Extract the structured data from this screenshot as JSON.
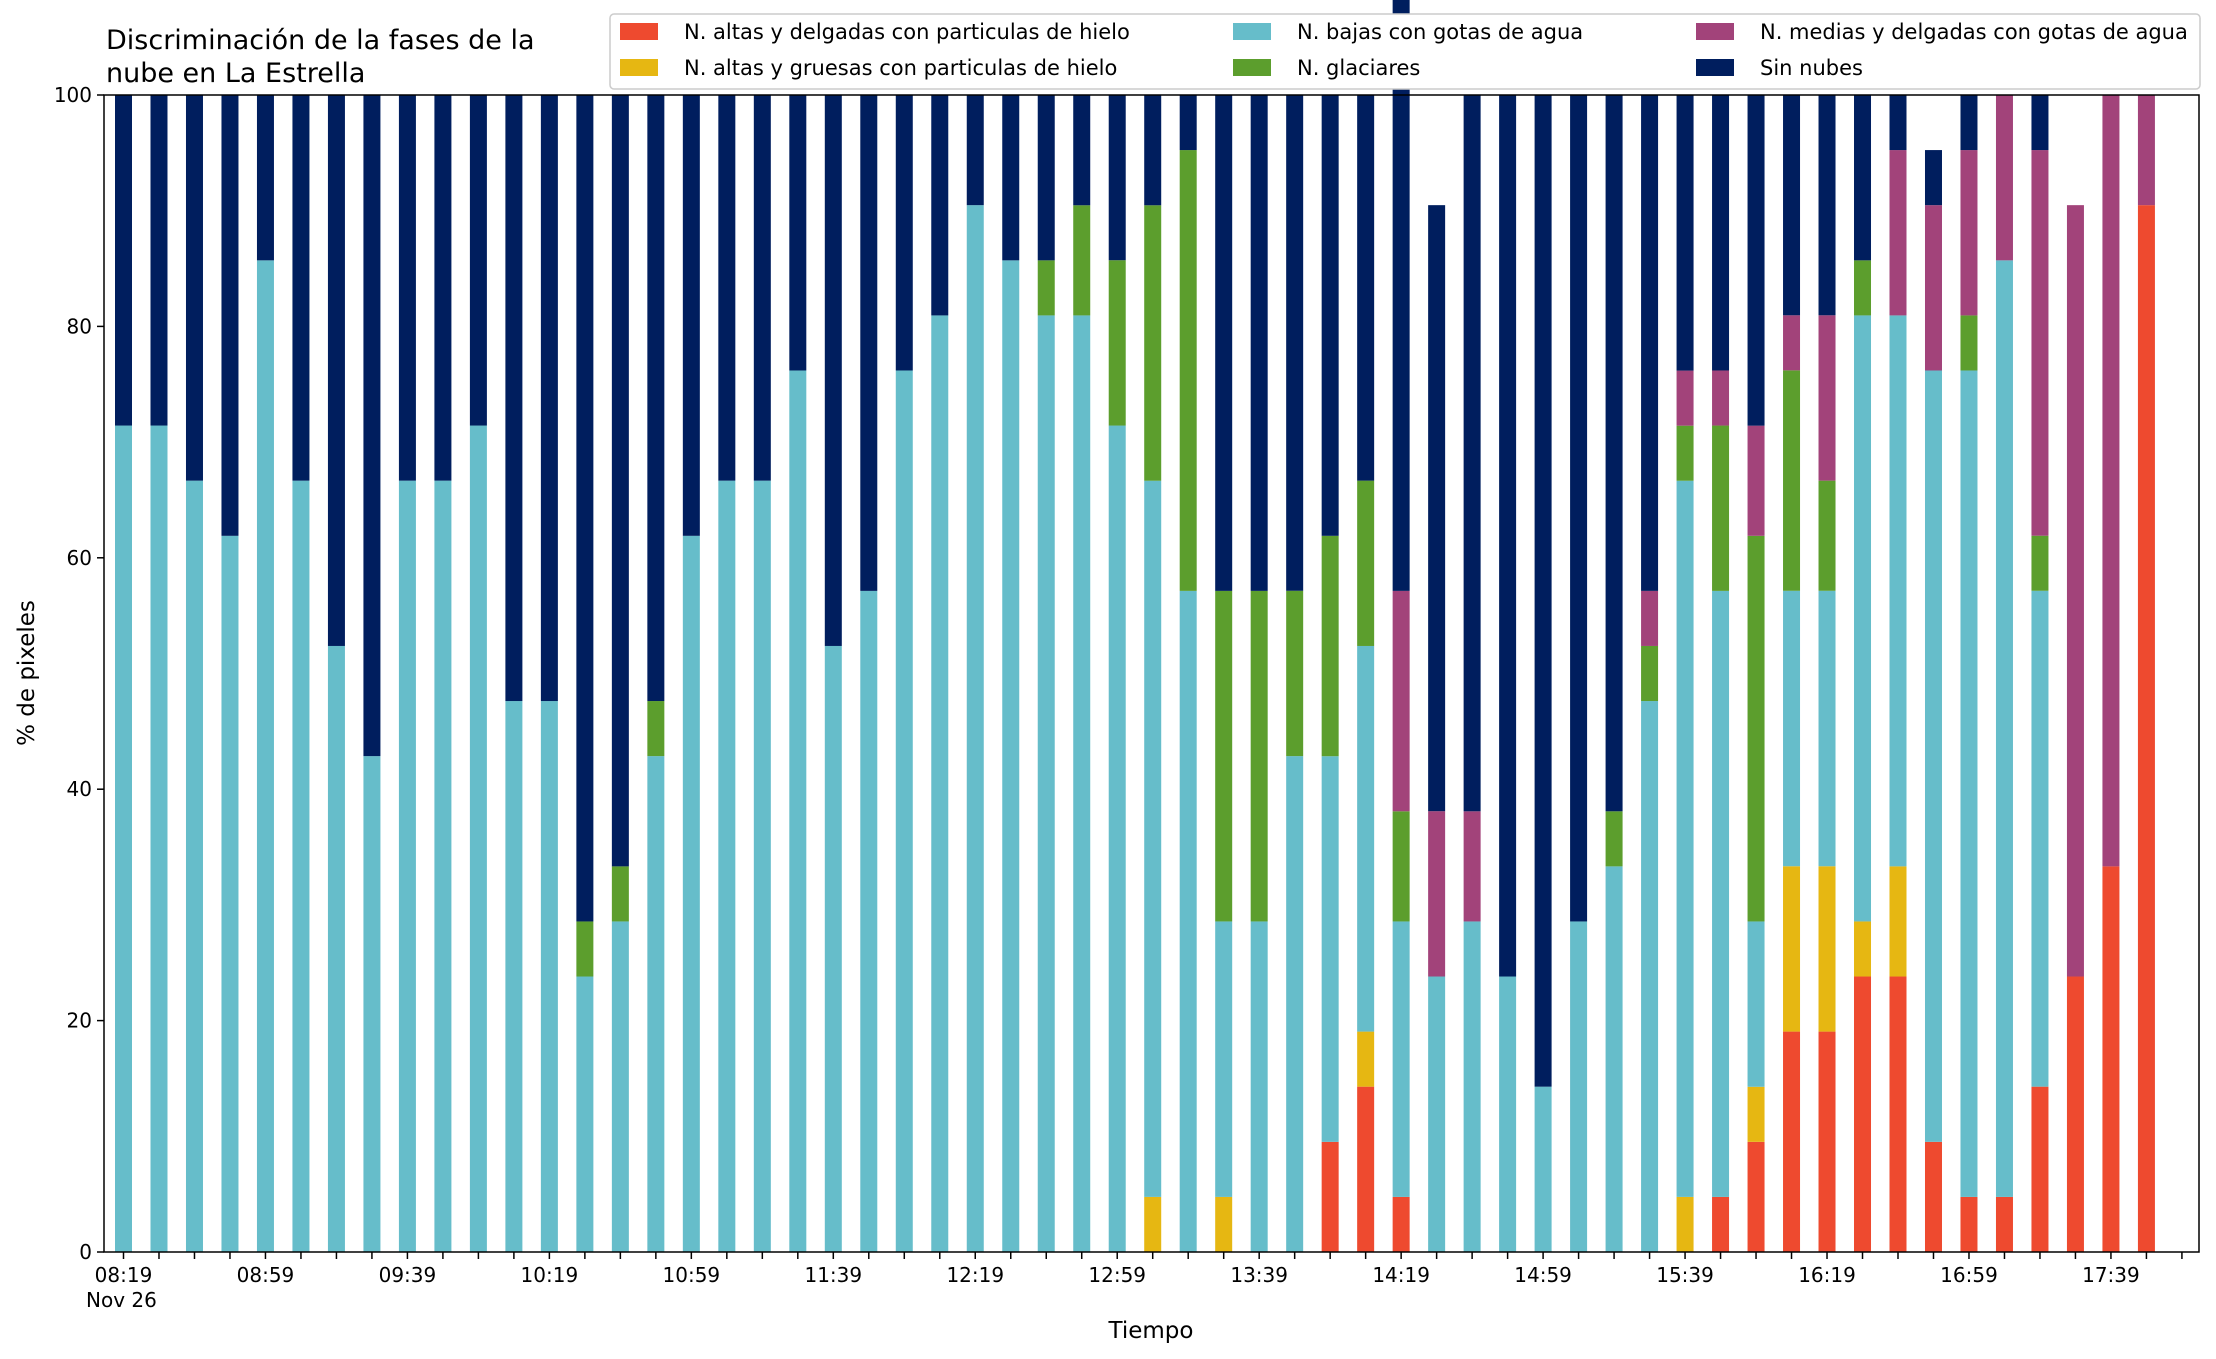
{
  "chart_data": {
    "type": "bar",
    "stacked": true,
    "title_lines": [
      "Discriminación de la fases de la",
      "nube en La Estrella"
    ],
    "xlabel": "Tiempo",
    "ylabel": "% de pixeles",
    "ylim": [
      0,
      100
    ],
    "yticks": [
      0,
      20,
      40,
      60,
      80,
      100
    ],
    "grid": false,
    "legend_position": "top-right",
    "x_date_label": "Nov 26",
    "x_tick_labels": [
      "08:19",
      "08:59",
      "09:39",
      "10:19",
      "10:59",
      "11:39",
      "12:19",
      "12:59",
      "13:39",
      "14:19",
      "14:59",
      "15:39",
      "16:19",
      "16:59",
      "17:39"
    ],
    "categories": [
      "08:19",
      "08:29",
      "08:39",
      "08:49",
      "08:59",
      "09:09",
      "09:19",
      "09:29",
      "09:39",
      "09:49",
      "09:59",
      "10:09",
      "10:19",
      "10:29",
      "10:39",
      "10:49",
      "10:59",
      "11:09",
      "11:19",
      "11:29",
      "11:39",
      "11:49",
      "11:59",
      "12:09",
      "12:19",
      "12:29",
      "12:39",
      "12:49",
      "12:59",
      "13:09",
      "13:19",
      "13:29",
      "13:39",
      "13:49",
      "13:59",
      "14:09",
      "14:19",
      "14:29",
      "14:39",
      "14:49",
      "14:59",
      "15:09",
      "15:19",
      "15:29",
      "15:39",
      "15:49",
      "15:59",
      "16:09",
      "16:19",
      "16:29",
      "16:39",
      "16:49",
      "16:59",
      "17:09",
      "17:19",
      "17:29",
      "17:39",
      "17:49"
    ],
    "legend_order": [
      0,
      1,
      2,
      3,
      4,
      5
    ],
    "series": [
      {
        "name": "N. altas y delgadas con particulas de hielo",
        "color": "#ee4a2f",
        "values": [
          0,
          0,
          0,
          0,
          0,
          0,
          0,
          0,
          0,
          0,
          0,
          0,
          0,
          0,
          0,
          0,
          0,
          0,
          0,
          0,
          0,
          0,
          0,
          0,
          0,
          0,
          0,
          0,
          0,
          0,
          0,
          0,
          0,
          0,
          9.52,
          14.29,
          4.76,
          0,
          0,
          0,
          0,
          0,
          0,
          0,
          0,
          4.76,
          9.52,
          19.05,
          19.05,
          23.81,
          23.81,
          9.52,
          4.76,
          4.76,
          14.29,
          23.81,
          33.33,
          90.48
        ]
      },
      {
        "name": "N. altas y gruesas con particulas de hielo",
        "color": "#e6b712",
        "values": [
          0,
          0,
          0,
          0,
          0,
          0,
          0,
          0,
          0,
          0,
          0,
          0,
          0,
          0,
          0,
          0,
          0,
          0,
          0,
          0,
          0,
          0,
          0,
          0,
          0,
          0,
          0,
          0,
          0,
          4.76,
          0,
          4.76,
          0,
          0,
          0,
          4.76,
          0,
          0,
          0,
          0,
          0,
          0,
          0,
          0,
          4.76,
          0,
          4.76,
          14.29,
          14.29,
          4.76,
          9.52,
          0,
          0,
          0,
          0,
          0,
          0,
          0
        ]
      },
      {
        "name": "N. bajas con gotas de agua",
        "color": "#66bdca",
        "values": [
          71.43,
          71.43,
          66.67,
          61.9,
          85.71,
          66.67,
          52.38,
          42.86,
          66.67,
          66.67,
          71.43,
          47.62,
          47.62,
          23.81,
          28.57,
          42.86,
          61.9,
          66.67,
          66.67,
          76.19,
          52.38,
          57.14,
          76.19,
          80.95,
          90.48,
          85.71,
          80.95,
          80.95,
          71.43,
          61.9,
          57.14,
          23.81,
          28.57,
          42.86,
          33.33,
          33.33,
          23.81,
          23.81,
          28.57,
          23.81,
          14.29,
          28.57,
          33.33,
          47.62,
          61.9,
          52.38,
          14.29,
          23.81,
          23.81,
          52.38,
          47.62,
          66.67,
          71.43,
          80.95,
          42.86,
          0,
          0,
          0
        ]
      },
      {
        "name": "N. glaciares",
        "color": "#5c9e2d",
        "values": [
          0,
          0,
          0,
          0,
          0,
          0,
          0,
          0,
          0,
          0,
          0,
          0,
          0,
          4.76,
          4.76,
          4.76,
          0,
          0,
          0,
          0,
          0,
          0,
          0,
          0,
          0,
          0,
          4.76,
          9.52,
          14.29,
          23.81,
          38.1,
          28.57,
          28.57,
          14.29,
          19.05,
          14.29,
          9.52,
          0,
          0,
          0,
          0,
          0,
          4.76,
          4.76,
          4.76,
          14.29,
          33.33,
          19.05,
          9.52,
          4.76,
          0,
          0,
          4.76,
          0,
          4.76,
          0,
          0,
          0
        ]
      },
      {
        "name": "N. medias y delgadas con gotas de agua",
        "color": "#a2437a",
        "values": [
          0,
          0,
          0,
          0,
          0,
          0,
          0,
          0,
          0,
          0,
          0,
          0,
          0,
          0,
          0,
          0,
          0,
          0,
          0,
          0,
          0,
          0,
          0,
          0,
          0,
          0,
          0,
          0,
          0,
          0,
          0,
          0,
          0,
          0,
          0,
          0,
          19.05,
          14.29,
          9.52,
          0,
          0,
          0,
          0,
          4.76,
          4.76,
          4.76,
          9.52,
          4.76,
          14.29,
          0,
          14.29,
          14.29,
          14.29,
          14.29,
          33.33,
          66.67,
          66.67,
          9.52
        ]
      },
      {
        "name": "Sin nubes",
        "color": "#001e5e",
        "values": [
          28.57,
          28.57,
          33.33,
          38.1,
          14.29,
          33.33,
          47.62,
          57.14,
          33.33,
          33.33,
          28.57,
          52.38,
          52.38,
          71.43,
          66.67,
          52.38,
          38.1,
          33.33,
          33.33,
          23.81,
          47.62,
          42.86,
          23.81,
          19.05,
          9.52,
          14.29,
          14.29,
          9.52,
          14.29,
          9.52,
          4.76,
          42.86,
          42.86,
          42.86,
          38.1,
          33.33,
          52.38,
          52.38,
          61.9,
          76.19,
          85.71,
          71.43,
          61.9,
          42.86,
          23.81,
          23.81,
          28.57,
          19.05,
          19.05,
          14.29,
          4.76,
          4.76,
          4.76,
          0,
          4.76,
          0,
          0,
          0
        ]
      }
    ]
  }
}
